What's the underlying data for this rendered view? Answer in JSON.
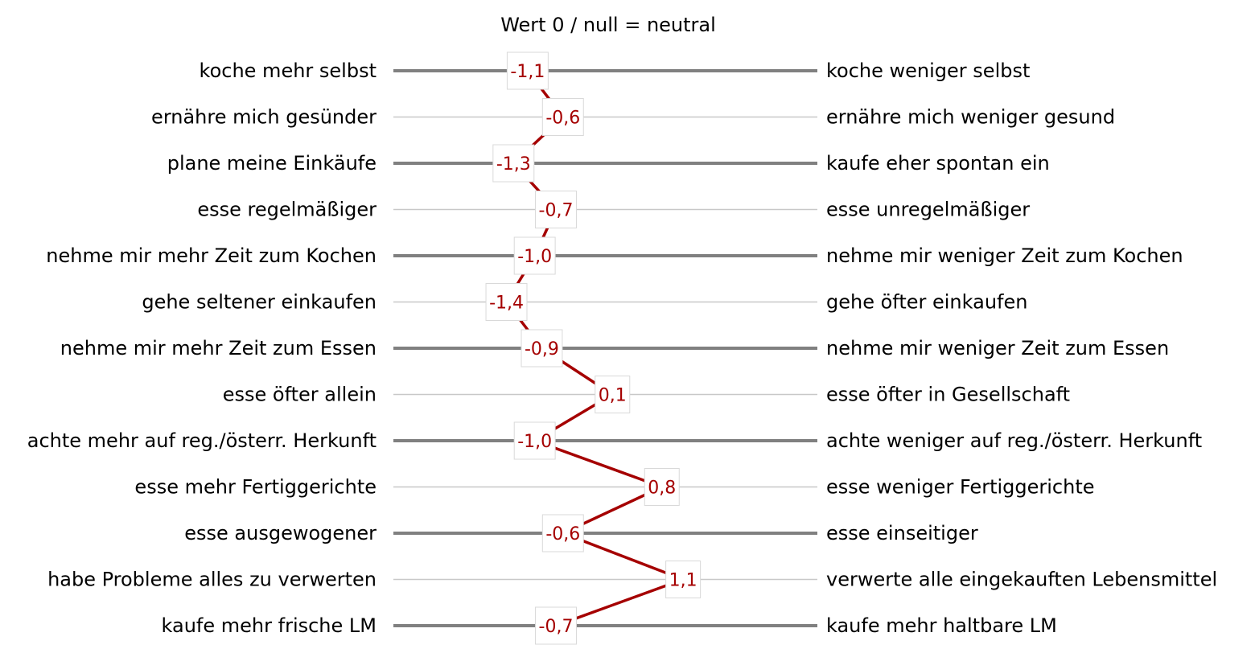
{
  "chart_data": {
    "type": "line",
    "subtitle": "Wert 0 / null = neutral",
    "xlim": [
      -3,
      3
    ],
    "rows": [
      {
        "left": "koche mehr selbst",
        "right": "koche weniger selbst",
        "value": -1.1,
        "label": "-1,1"
      },
      {
        "left": "ernähre mich gesünder",
        "right": "ernähre mich weniger gesund",
        "value": -0.6,
        "label": "-0,6"
      },
      {
        "left": "plane meine Einkäufe",
        "right": "kaufe eher spontan ein",
        "value": -1.3,
        "label": "-1,3"
      },
      {
        "left": "esse regelmäßiger",
        "right": "esse unregelmäßiger",
        "value": -0.7,
        "label": "-0,7"
      },
      {
        "left": "nehme mir mehr Zeit zum Kochen",
        "right": "nehme mir weniger Zeit zum Kochen",
        "value": -1.0,
        "label": "-1,0"
      },
      {
        "left": "gehe seltener einkaufen",
        "right": "gehe öfter einkaufen",
        "value": -1.4,
        "label": "-1,4"
      },
      {
        "left": "nehme mir mehr Zeit zum Essen",
        "right": "nehme mir weniger Zeit zum Essen",
        "value": -0.9,
        "label": "-0,9"
      },
      {
        "left": "esse öfter allein",
        "right": "esse öfter in Gesellschaft",
        "value": 0.1,
        "label": "0,1"
      },
      {
        "left": "achte mehr auf reg./österr. Herkunft",
        "right": "achte weniger auf reg./österr. Herkunft",
        "value": -1.0,
        "label": "-1,0"
      },
      {
        "left": "esse mehr Fertiggerichte",
        "right": "esse weniger Fertiggerichte",
        "value": 0.8,
        "label": "0,8"
      },
      {
        "left": "esse ausgewogener",
        "right": "esse einseitiger",
        "value": -0.6,
        "label": "-0,6"
      },
      {
        "left": "habe Probleme alles zu verwerten",
        "right": "verwerte alle eingekauften Lebensmittel",
        "value": 1.1,
        "label": "1,1"
      },
      {
        "left": "kaufe mehr frische LM",
        "right": "kaufe mehr haltbare LM",
        "value": -0.7,
        "label": "-0,7"
      }
    ],
    "colors": {
      "series_line": "#A50000",
      "thick_row_line": "#808080",
      "thin_row_line": "#C8C8C8",
      "label_text": "#A50000",
      "label_border": "#D9D9D9"
    }
  }
}
